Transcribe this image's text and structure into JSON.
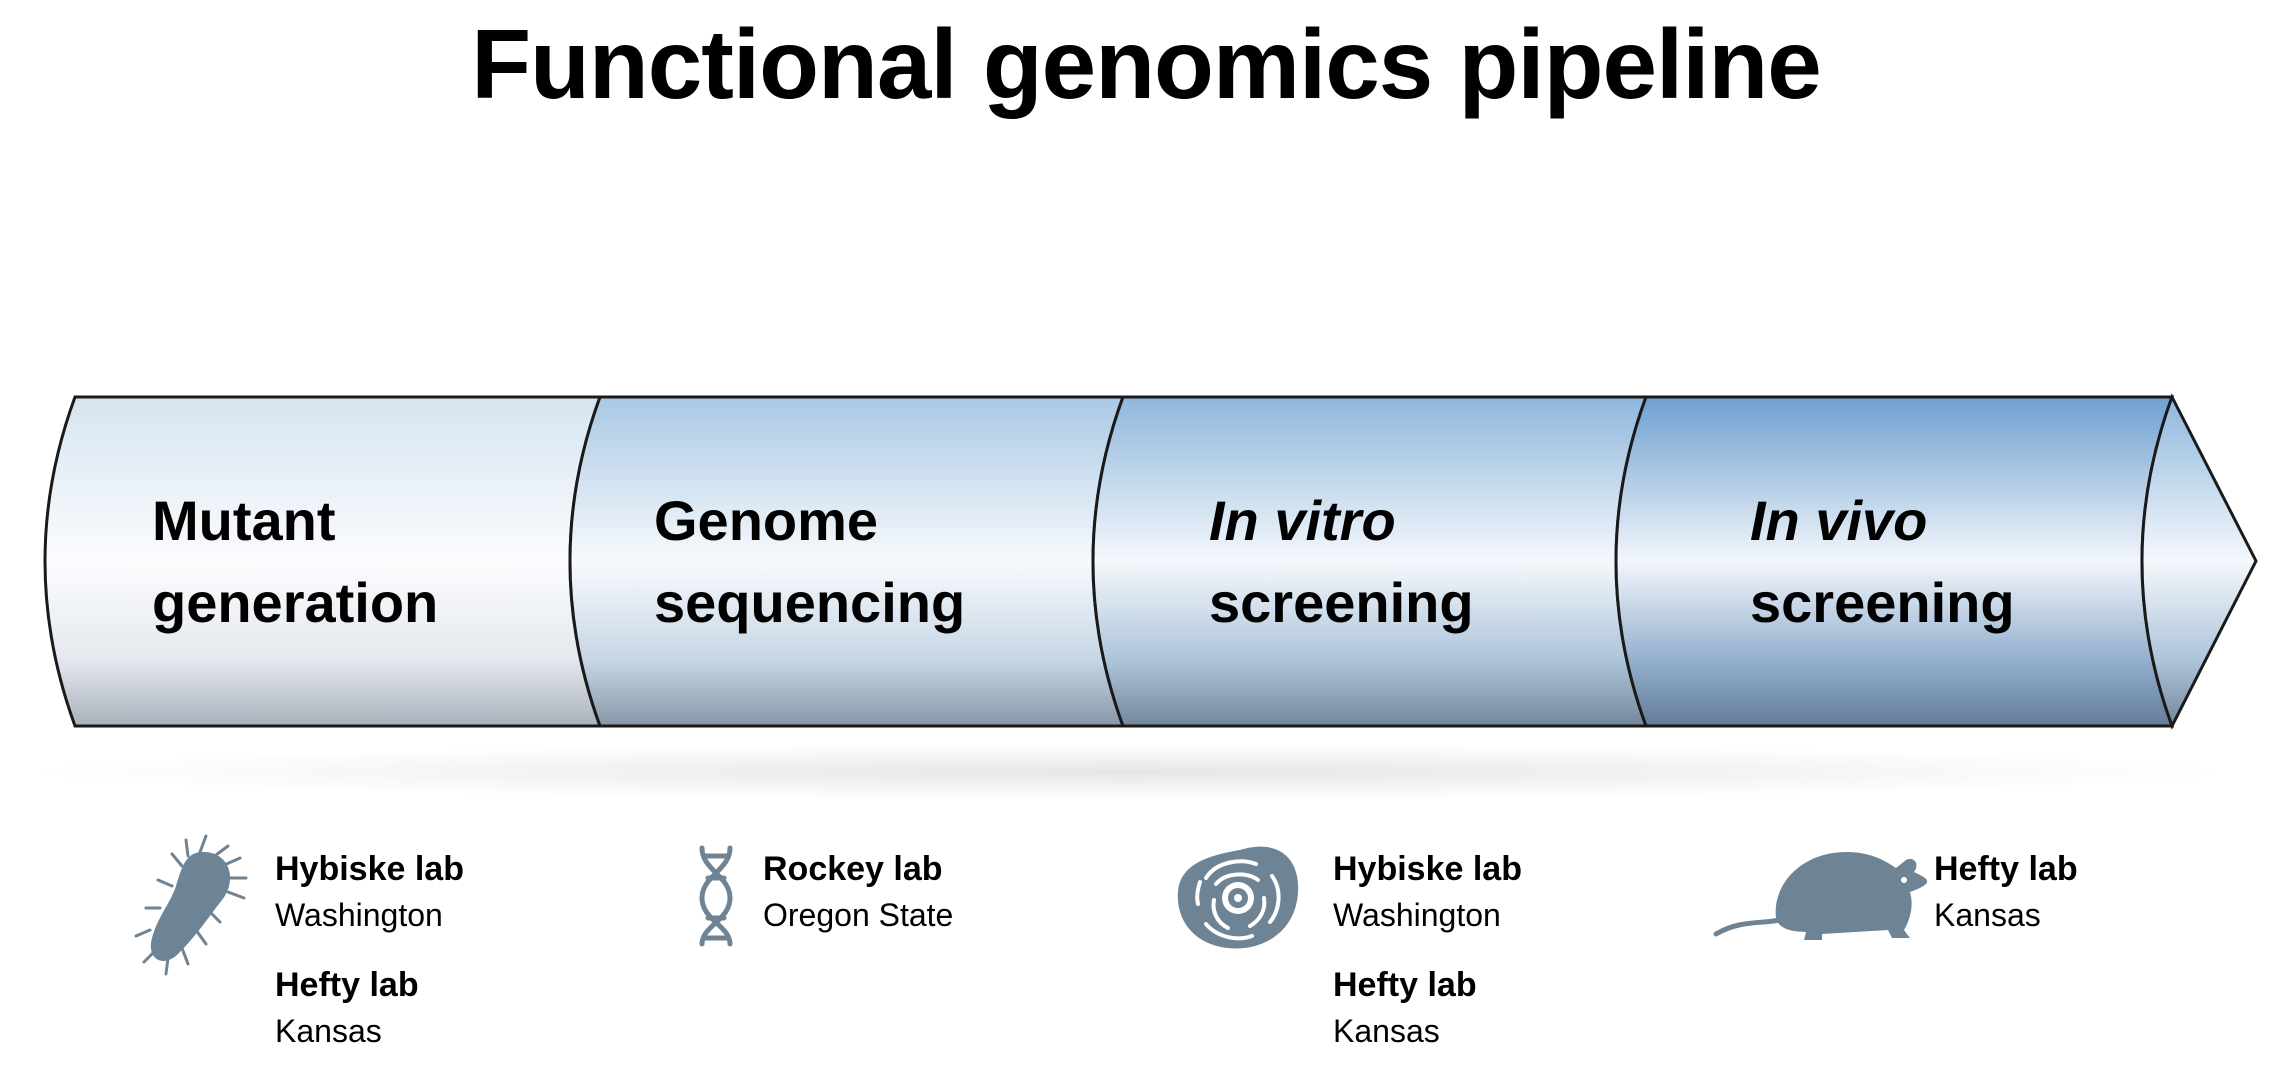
{
  "title": "Functional genomics pipeline",
  "colors": {
    "stage_fill_light": "#f4f7fb",
    "stage_fill_mid": "#b7d1e8",
    "stage_fill_dark": "#6e9ccb",
    "outline": "#1a1a1a",
    "icon": "#6e8394"
  },
  "stages": [
    {
      "line1": "Mutant",
      "line2": "generation",
      "italic_line1": false
    },
    {
      "line1": "Genome",
      "line2": "sequencing",
      "italic_line1": false
    },
    {
      "line1": "In vitro",
      "line2": "screening",
      "italic_line1": true
    },
    {
      "line1": "In vivo",
      "line2": "screening",
      "italic_line1": true
    }
  ],
  "labs": [
    {
      "icon": "bacterium-icon",
      "entries": [
        {
          "name": "Hybiske lab",
          "location": "Washington"
        },
        {
          "name": "Hefty lab",
          "location": "Kansas"
        }
      ]
    },
    {
      "icon": "dna-icon",
      "entries": [
        {
          "name": "Rockey lab",
          "location": "Oregon State"
        }
      ]
    },
    {
      "icon": "cell-icon",
      "entries": [
        {
          "name": "Hybiske lab",
          "location": "Washington"
        },
        {
          "name": "Hefty lab",
          "location": "Kansas"
        }
      ]
    },
    {
      "icon": "mouse-icon",
      "entries": [
        {
          "name": "Hefty lab",
          "location": "Kansas"
        }
      ]
    }
  ]
}
